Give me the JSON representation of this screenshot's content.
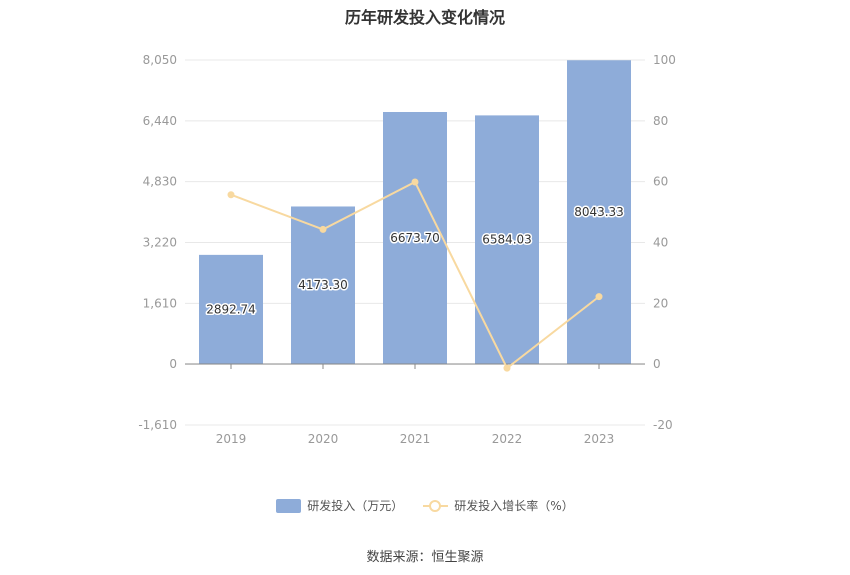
{
  "title": "历年研发投入变化情况",
  "source": "数据来源：恒生聚源",
  "colors": {
    "bar": "#8eacd9",
    "line": "#f8d9a0",
    "grid": "#e8e8e8",
    "axis_text": "#999999",
    "label_text": "#333333"
  },
  "chart_data": {
    "type": "bar",
    "title": "历年研发投入变化情况",
    "categories": [
      "2019",
      "2020",
      "2021",
      "2022",
      "2023"
    ],
    "series": [
      {
        "name": "研发投入（万元）",
        "type": "bar",
        "axis": "left",
        "values": [
          2892.74,
          4173.3,
          6673.7,
          6584.03,
          8043.33
        ],
        "labels": [
          "2892.74",
          "4173.30",
          "6673.70",
          "6584.03",
          "8043.33"
        ]
      },
      {
        "name": "研发投入增长率（%）",
        "type": "line",
        "axis": "right",
        "values": [
          55.7,
          44.3,
          59.9,
          -1.3,
          22.2
        ]
      }
    ],
    "y_left": {
      "ylim": [
        -1610,
        8050
      ],
      "ticks": [
        "-1,610",
        "0",
        "1,610",
        "3,220",
        "4,830",
        "6,440",
        "8,050"
      ],
      "tick_values": [
        -1610,
        0,
        1610,
        3220,
        4830,
        6440,
        8050
      ]
    },
    "y_right": {
      "ylim": [
        -20,
        100
      ],
      "ticks": [
        "-20",
        "0",
        "20",
        "40",
        "60",
        "80",
        "100"
      ],
      "tick_values": [
        -20,
        0,
        20,
        40,
        60,
        80,
        100
      ]
    },
    "grid": true,
    "legend_position": "bottom-center"
  }
}
